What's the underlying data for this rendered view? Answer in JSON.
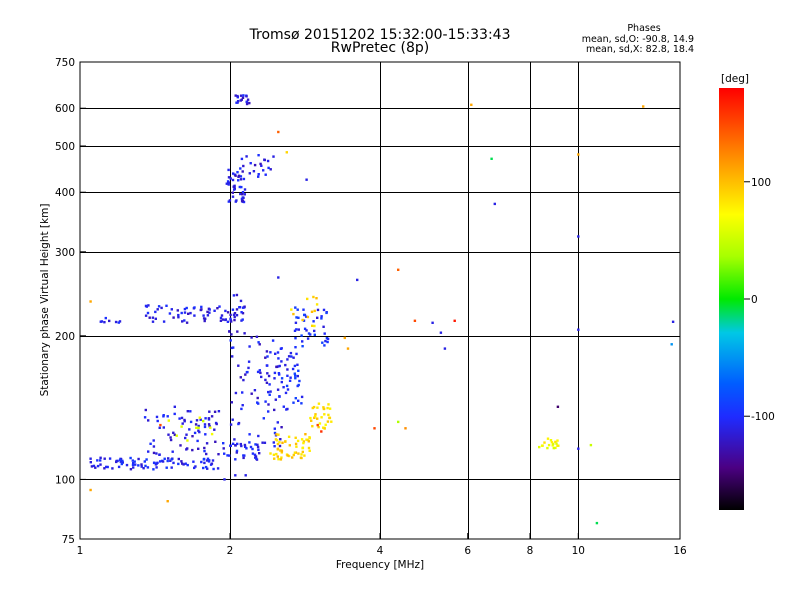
{
  "header": {
    "title_line1": "Tromsø 20151202 15:32:00-15:33:43",
    "title_line2": "RwPretec (8p)",
    "stats_title": "Phases",
    "stats_line_o": "mean, sd,O: -90.8, 14.9",
    "stats_line_x": "mean, sd,X:  82.8, 18.4"
  },
  "colorbar": {
    "label": "[deg]",
    "min": -180,
    "max": 180,
    "ticks": [
      {
        "value": 100,
        "label": "100"
      },
      {
        "value": 0,
        "label": "0"
      },
      {
        "value": -100,
        "label": "-100"
      }
    ]
  },
  "chart_data": {
    "type": "scatter",
    "title": "Tromsø 20151202 15:32:00-15:33:43",
    "subtitle": "RwPretec (8p)",
    "xlabel": "Frequency [MHz]",
    "ylabel": "Stationary phase Virtual Height [km]",
    "x_scale": "log",
    "y_scale": "log",
    "xlim": [
      1,
      16
    ],
    "ylim": [
      75,
      750
    ],
    "x_ticks": [
      {
        "value": 1,
        "label": "1"
      },
      {
        "value": 2,
        "label": "2"
      },
      {
        "value": 4,
        "label": "4"
      },
      {
        "value": 6,
        "label": "6"
      },
      {
        "value": 8,
        "label": "8"
      },
      {
        "value": 10,
        "label": "10"
      },
      {
        "value": 16,
        "label": "16"
      }
    ],
    "x_grid": [
      2,
      4,
      6,
      8,
      10
    ],
    "y_ticks": [
      {
        "value": 75,
        "label": "75"
      },
      {
        "value": 100,
        "label": "100"
      },
      {
        "value": 200,
        "label": "200"
      },
      {
        "value": 300,
        "label": "300"
      },
      {
        "value": 400,
        "label": "400"
      },
      {
        "value": 500,
        "label": "500"
      },
      {
        "value": 600,
        "label": "600"
      },
      {
        "value": 750,
        "label": "750"
      }
    ],
    "y_grid": [
      100,
      200,
      300,
      400,
      500,
      600
    ],
    "color_by": "phase [deg]",
    "clusters": [
      {
        "x_range": [
          1.05,
          1.9
        ],
        "y_range": [
          105,
          111
        ],
        "phase": -105,
        "count": 90
      },
      {
        "x_range": [
          1.9,
          2.3
        ],
        "y_range": [
          110,
          120
        ],
        "phase": -105,
        "count": 30
      },
      {
        "x_range": [
          1.35,
          1.9
        ],
        "y_range": [
          112,
          140
        ],
        "phase": -110,
        "count": 70
      },
      {
        "x_range": [
          1.5,
          1.85
        ],
        "y_range": [
          120,
          135
        ],
        "phase": 60,
        "count": 10
      },
      {
        "x_range": [
          1.35,
          2.05
        ],
        "y_range": [
          213,
          232
        ],
        "phase": -110,
        "count": 60
      },
      {
        "x_range": [
          1.1,
          1.25
        ],
        "y_range": [
          213,
          218
        ],
        "phase": -110,
        "count": 8
      },
      {
        "x_range": [
          1.98,
          2.15
        ],
        "y_range": [
          200,
          245
        ],
        "phase": -110,
        "count": 25
      },
      {
        "x_range": [
          2.0,
          2.55
        ],
        "y_range": [
          115,
          200
        ],
        "phase": -110,
        "count": 80
      },
      {
        "x_range": [
          2.35,
          2.8
        ],
        "y_range": [
          140,
          190
        ],
        "phase": -100,
        "count": 50
      },
      {
        "x_range": [
          2.7,
          3.15
        ],
        "y_range": [
          190,
          230
        ],
        "phase": -100,
        "count": 40
      },
      {
        "x_range": [
          2.4,
          2.9
        ],
        "y_range": [
          110,
          125
        ],
        "phase": 90,
        "count": 55
      },
      {
        "x_range": [
          2.9,
          3.2
        ],
        "y_range": [
          125,
          145
        ],
        "phase": 85,
        "count": 30
      },
      {
        "x_range": [
          2.6,
          3.0
        ],
        "y_range": [
          205,
          245
        ],
        "phase": 90,
        "count": 12
      },
      {
        "x_range": [
          1.97,
          2.15
        ],
        "y_range": [
          380,
          450
        ],
        "phase": -110,
        "count": 45
      },
      {
        "x_range": [
          2.1,
          2.45
        ],
        "y_range": [
          420,
          480
        ],
        "phase": -110,
        "count": 20
      },
      {
        "x_range": [
          2.05,
          2.2
        ],
        "y_range": [
          610,
          640
        ],
        "phase": -110,
        "count": 18
      },
      {
        "x_range": [
          8.2,
          9.2
        ],
        "y_range": [
          116,
          122
        ],
        "phase": 70,
        "count": 18
      }
    ],
    "points": [
      {
        "x": 2.5,
        "y": 535,
        "phase": 140
      },
      {
        "x": 2.6,
        "y": 485,
        "phase": 90
      },
      {
        "x": 2.85,
        "y": 425,
        "phase": -110
      },
      {
        "x": 6.1,
        "y": 610,
        "phase": 110
      },
      {
        "x": 13.5,
        "y": 605,
        "phase": 110
      },
      {
        "x": 6.7,
        "y": 470,
        "phase": -10
      },
      {
        "x": 10.0,
        "y": 480,
        "phase": 110
      },
      {
        "x": 6.8,
        "y": 378,
        "phase": -110
      },
      {
        "x": 10.0,
        "y": 323,
        "phase": -110
      },
      {
        "x": 2.5,
        "y": 265,
        "phase": -110
      },
      {
        "x": 3.6,
        "y": 262,
        "phase": -110
      },
      {
        "x": 4.35,
        "y": 275,
        "phase": 140
      },
      {
        "x": 4.7,
        "y": 215,
        "phase": 150
      },
      {
        "x": 5.1,
        "y": 213,
        "phase": -110
      },
      {
        "x": 5.3,
        "y": 203,
        "phase": -110
      },
      {
        "x": 5.65,
        "y": 215,
        "phase": 170
      },
      {
        "x": 5.4,
        "y": 188,
        "phase": -110
      },
      {
        "x": 10.0,
        "y": 206,
        "phase": -110
      },
      {
        "x": 15.5,
        "y": 214,
        "phase": -110
      },
      {
        "x": 15.4,
        "y": 192,
        "phase": -50
      },
      {
        "x": 3.4,
        "y": 198,
        "phase": 110
      },
      {
        "x": 3.45,
        "y": 188,
        "phase": 110
      },
      {
        "x": 3.9,
        "y": 128,
        "phase": 150
      },
      {
        "x": 4.35,
        "y": 132,
        "phase": 40
      },
      {
        "x": 4.5,
        "y": 128,
        "phase": 120
      },
      {
        "x": 1.05,
        "y": 236,
        "phase": 110
      },
      {
        "x": 1.05,
        "y": 95,
        "phase": 110
      },
      {
        "x": 1.5,
        "y": 90,
        "phase": 110
      },
      {
        "x": 1.95,
        "y": 100,
        "phase": -110
      },
      {
        "x": 2.05,
        "y": 102,
        "phase": -110
      },
      {
        "x": 2.15,
        "y": 102,
        "phase": -110
      },
      {
        "x": 9.1,
        "y": 142,
        "phase": -150
      },
      {
        "x": 10.0,
        "y": 116,
        "phase": -110
      },
      {
        "x": 10.6,
        "y": 118,
        "phase": 50
      },
      {
        "x": 10.9,
        "y": 81,
        "phase": -10
      },
      {
        "x": 3.0,
        "y": 130,
        "phase": 150
      },
      {
        "x": 3.05,
        "y": 126,
        "phase": 160
      },
      {
        "x": 1.9,
        "y": 139,
        "phase": -110
      },
      {
        "x": 1.55,
        "y": 142,
        "phase": -110
      },
      {
        "x": 1.45,
        "y": 130,
        "phase": 150
      }
    ]
  }
}
